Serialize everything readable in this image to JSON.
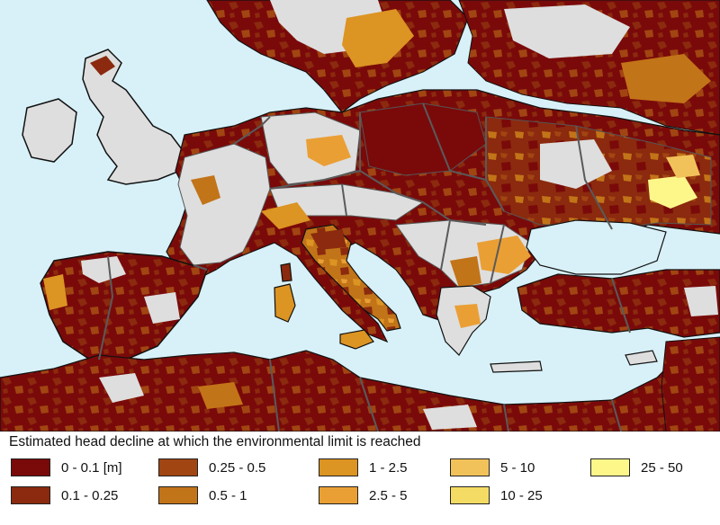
{
  "legend": {
    "title": "Estimated head decline at which the environmental limit is reached",
    "items": [
      {
        "label": "0 - 0.1 [m]",
        "color": "#7a0a0a"
      },
      {
        "label": "0.1 - 0.25",
        "color": "#8b2a0e"
      },
      {
        "label": "0.25 - 0.5",
        "color": "#a14512"
      },
      {
        "label": "0.5 - 1",
        "color": "#c27418"
      },
      {
        "label": "1 - 2.5",
        "color": "#dc9422"
      },
      {
        "label": "2.5 - 5",
        "color": "#ea9f35"
      },
      {
        "label": "5 - 10",
        "color": "#f2c25a"
      },
      {
        "label": "10 - 25",
        "color": "#f4dc64"
      },
      {
        "label": "25 - 50",
        "color": "#fdf78a"
      }
    ]
  },
  "colors": {
    "sea": "#d8f1f8",
    "no_data_land": "#dedede",
    "borders": "#5a5a5a"
  }
}
